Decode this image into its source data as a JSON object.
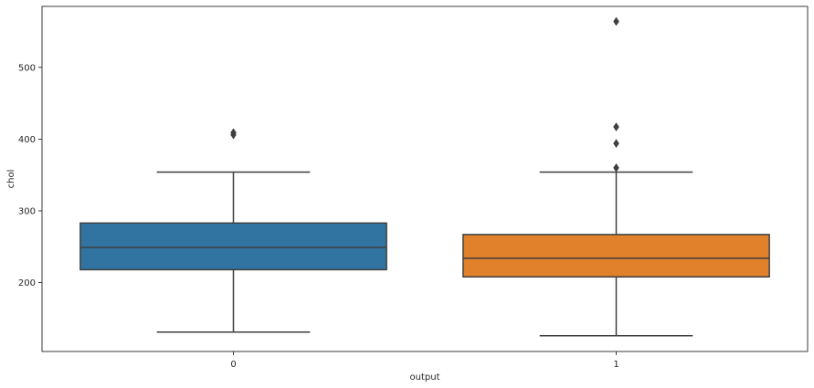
{
  "chart_data": {
    "type": "boxplot",
    "xlabel": "output",
    "ylabel": "chol",
    "ylim": [
      104,
      585
    ],
    "yticks": [
      200,
      300,
      400,
      500
    ],
    "categories": [
      "0",
      "1"
    ],
    "boxes": [
      {
        "category": "0",
        "color": "#3274a1",
        "whisker_low": 131,
        "q1": 218,
        "median": 249,
        "q3": 283,
        "whisker_high": 354,
        "outliers": [
          406,
          409
        ]
      },
      {
        "category": "1",
        "color": "#e1812c",
        "whisker_low": 126,
        "q1": 208,
        "median": 234,
        "q3": 267,
        "whisker_high": 354,
        "outliers": [
          360,
          394,
          417,
          564
        ]
      }
    ],
    "grid": false,
    "legend": "none"
  }
}
